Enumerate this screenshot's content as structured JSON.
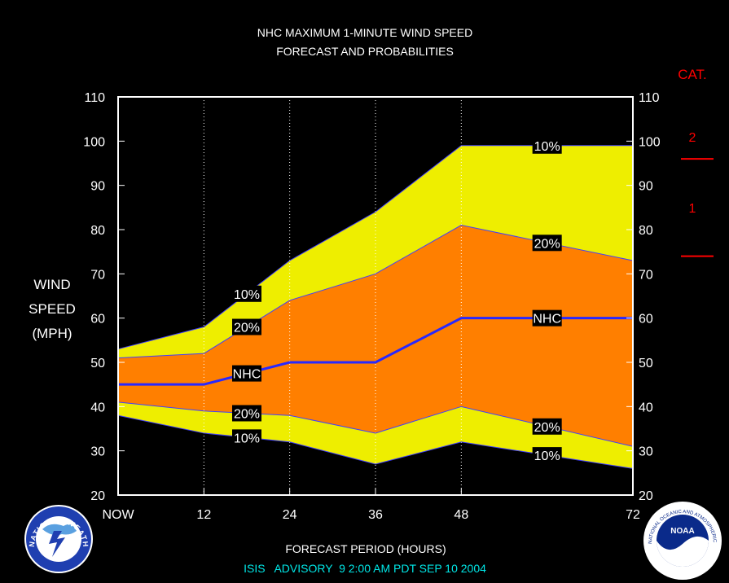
{
  "chart_data": {
    "type": "area",
    "title": "NHC MAXIMUM 1-MINUTE WIND SPEED",
    "subtitle": "FORECAST AND PROBABILITIES",
    "xlabel": "FORECAST PERIOD (HOURS)",
    "ylabel_lines": [
      "WIND",
      "SPEED",
      "(MPH)"
    ],
    "x_hours": [
      0,
      12,
      24,
      36,
      48,
      72
    ],
    "x_tick_labels": [
      "NOW",
      "12",
      "24",
      "36",
      "48",
      "72"
    ],
    "ylim": [
      20,
      110
    ],
    "y_ticks": [
      20,
      30,
      40,
      50,
      60,
      70,
      80,
      90,
      100,
      110
    ],
    "grid": "vertical dotted",
    "bands": {
      "upper_10": [
        53,
        58,
        73,
        84,
        99,
        99
      ],
      "upper_20": [
        51,
        52,
        64,
        70,
        81,
        73
      ],
      "nhc": [
        45,
        45,
        50,
        50,
        60,
        60
      ],
      "lower_20": [
        41,
        39,
        38,
        34,
        40,
        31
      ],
      "lower_10": [
        38,
        34,
        32,
        27,
        32,
        26
      ]
    },
    "band_labels": {
      "upper_10": "10%",
      "upper_20": "20%",
      "nhc": "NHC",
      "lower_20": "20%",
      "lower_10": "10%"
    },
    "label_hours": {
      "early": 18,
      "late": 60
    },
    "colors": {
      "outer_band": "#eeee00",
      "inner_band": "#ff7f00",
      "nhc_line": "#2828ff",
      "background": "#000000",
      "frame": "#ffffff",
      "category": "#ff0000"
    },
    "category": {
      "heading": "CAT.",
      "thresholds_mph": [
        74,
        96
      ],
      "labels": [
        {
          "text": "1",
          "mph": 85
        },
        {
          "text": "2",
          "mph": 101
        }
      ]
    },
    "advisory": "ISIS   ADVISORY  9 2:00 AM PDT SEP 10 2004"
  },
  "logos": {
    "left": {
      "icon": "nws-logo",
      "text": "NATIONAL WEATHER SERVICE"
    },
    "right": {
      "icon": "noaa-logo",
      "text": "NOAA",
      "ring_text": "NATIONAL OCEANIC AND ATMOSPHERIC ADMINISTRATION · U.S. DEPARTMENT OF COMMERCE"
    }
  }
}
